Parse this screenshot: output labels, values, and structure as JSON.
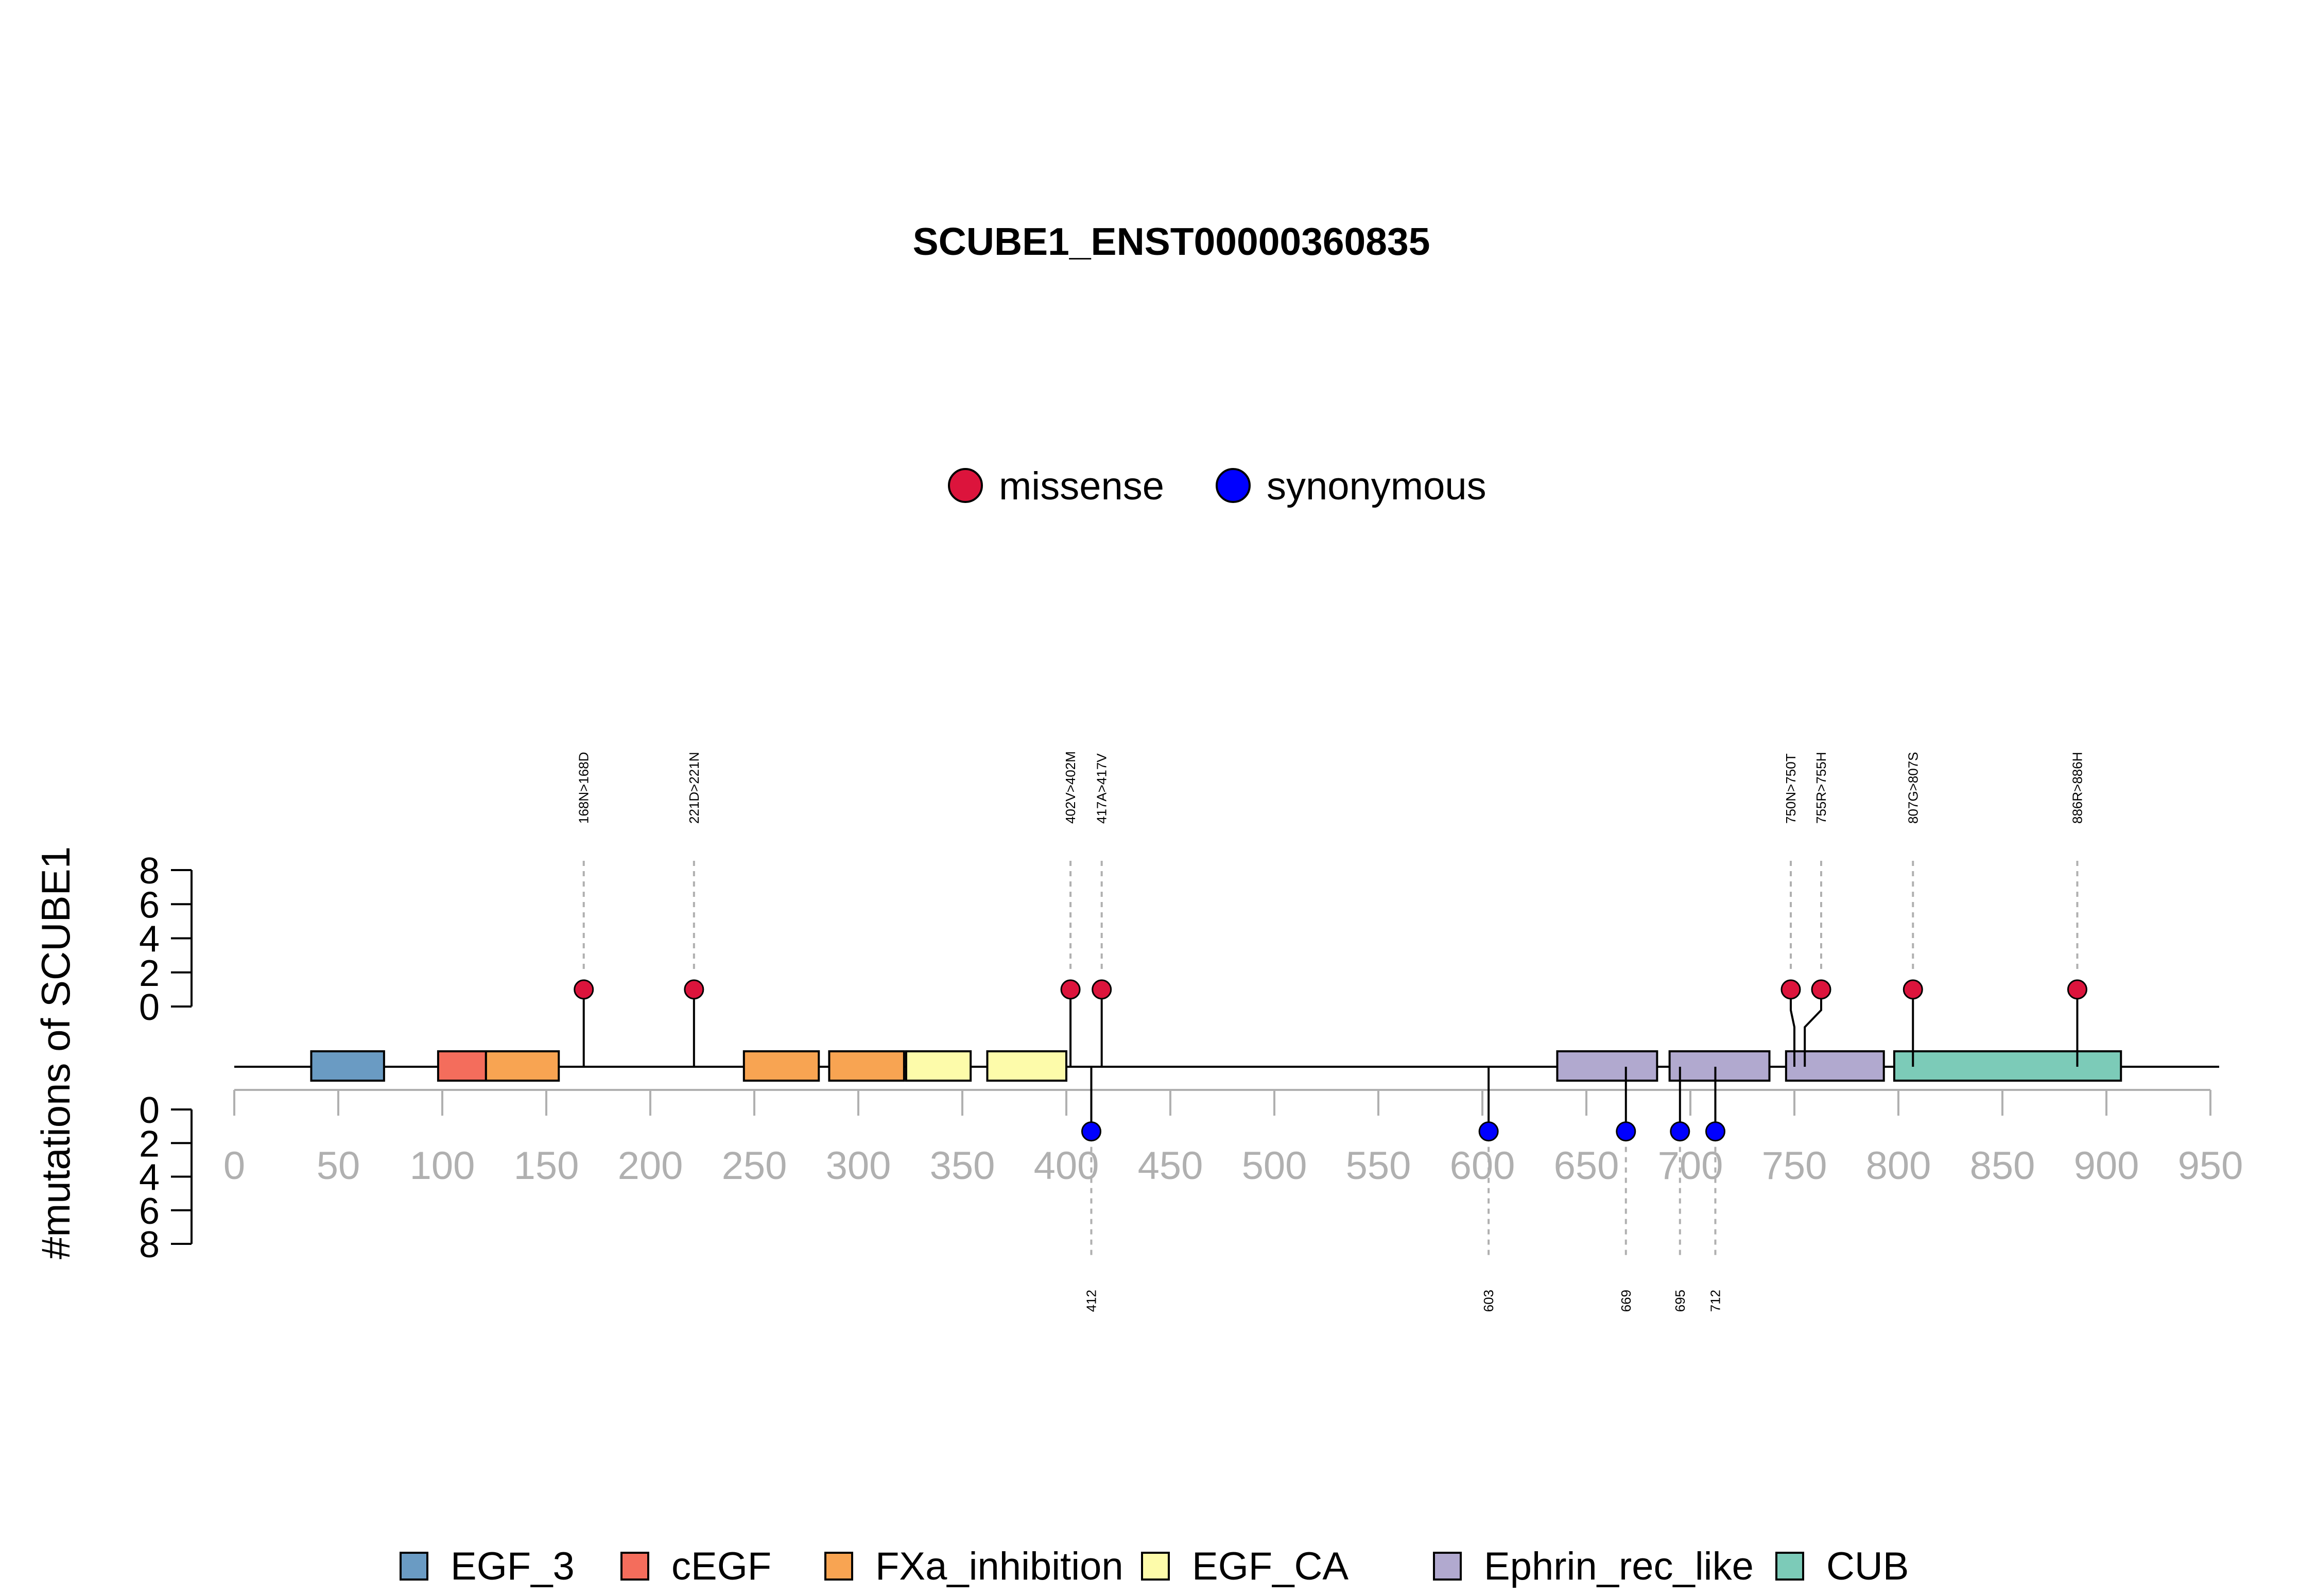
{
  "chart_data": {
    "type": "lollipop",
    "title": "SCUBE1_ENST00000360835",
    "ylabel": "#mutations of SCUBE1",
    "protein_length": 988,
    "xlim": [
      0,
      950
    ],
    "x_ticks": [
      0,
      50,
      100,
      150,
      200,
      250,
      300,
      350,
      400,
      450,
      500,
      550,
      600,
      650,
      700,
      750,
      800,
      850,
      900,
      950
    ],
    "y_ticks_top": [
      0,
      2,
      4,
      6,
      8
    ],
    "y_ticks_bottom": [
      0,
      2,
      4,
      6,
      8
    ],
    "ylim": [
      0,
      8
    ],
    "mutation_legend": [
      {
        "name": "missense",
        "color": "#dc143c"
      },
      {
        "name": "synonymous",
        "color": "#0000ff"
      }
    ],
    "domains": [
      {
        "name": "EGF_3",
        "start": 37,
        "end": 72,
        "color": "#6a9bc3"
      },
      {
        "name": "cEGF",
        "start": 98,
        "end": 121,
        "color": "#f46d5c"
      },
      {
        "name": "FXa_inhibition",
        "start": 121,
        "end": 156,
        "color": "#f8a452"
      },
      {
        "name": "FXa_inhibition",
        "start": 245,
        "end": 281,
        "color": "#f8a452"
      },
      {
        "name": "FXa_inhibition",
        "start": 286,
        "end": 322,
        "color": "#f8a452"
      },
      {
        "name": "EGF_CA",
        "start": 323,
        "end": 354,
        "color": "#fdfbaa"
      },
      {
        "name": "EGF_CA",
        "start": 362,
        "end": 400,
        "color": "#fdfbaa"
      },
      {
        "name": "Ephrin_rec_like",
        "start": 636,
        "end": 684,
        "color": "#b1a9cf"
      },
      {
        "name": "Ephrin_rec_like",
        "start": 690,
        "end": 738,
        "color": "#b1a9cf"
      },
      {
        "name": "Ephrin_rec_like",
        "start": 746,
        "end": 793,
        "color": "#b1a9cf"
      },
      {
        "name": "CUB",
        "start": 798,
        "end": 907,
        "color": "#7ccbb8"
      }
    ],
    "domain_legend": [
      {
        "name": "EGF_3",
        "color": "#6a9bc3"
      },
      {
        "name": "cEGF",
        "color": "#f46d5c"
      },
      {
        "name": "FXa_inhibition",
        "color": "#f8a452"
      },
      {
        "name": "EGF_CA",
        "color": "#fdfbaa"
      },
      {
        "name": "Ephrin_rec_like",
        "color": "#b1a9cf"
      },
      {
        "name": "CUB",
        "color": "#7ccbb8"
      }
    ],
    "mutations": [
      {
        "pos": 168,
        "label": "168N>168D",
        "type": "missense",
        "count": 1,
        "side": "top"
      },
      {
        "pos": 221,
        "label": "221D>221N",
        "type": "missense",
        "count": 1,
        "side": "top"
      },
      {
        "pos": 402,
        "label": "402V>402M",
        "type": "missense",
        "count": 1,
        "side": "top"
      },
      {
        "pos": 417,
        "label": "417A>417V",
        "type": "missense",
        "count": 1,
        "side": "top"
      },
      {
        "pos": 750,
        "label": "750N>750T",
        "type": "missense",
        "count": 1,
        "side": "top"
      },
      {
        "pos": 755,
        "label": "755R>755H",
        "type": "missense",
        "count": 1,
        "side": "top"
      },
      {
        "pos": 807,
        "label": "807G>807S",
        "type": "missense",
        "count": 1,
        "side": "top"
      },
      {
        "pos": 886,
        "label": "886R>886H",
        "type": "missense",
        "count": 1,
        "side": "top"
      },
      {
        "pos": 412,
        "label": "412",
        "type": "synonymous",
        "count": 1,
        "side": "bottom"
      },
      {
        "pos": 603,
        "label": "603",
        "type": "synonymous",
        "count": 1,
        "side": "bottom"
      },
      {
        "pos": 669,
        "label": "669",
        "type": "synonymous",
        "count": 1,
        "side": "bottom"
      },
      {
        "pos": 695,
        "label": "695",
        "type": "synonymous",
        "count": 1,
        "side": "bottom"
      },
      {
        "pos": 712,
        "label": "712",
        "type": "synonymous",
        "count": 1,
        "side": "bottom"
      }
    ]
  }
}
